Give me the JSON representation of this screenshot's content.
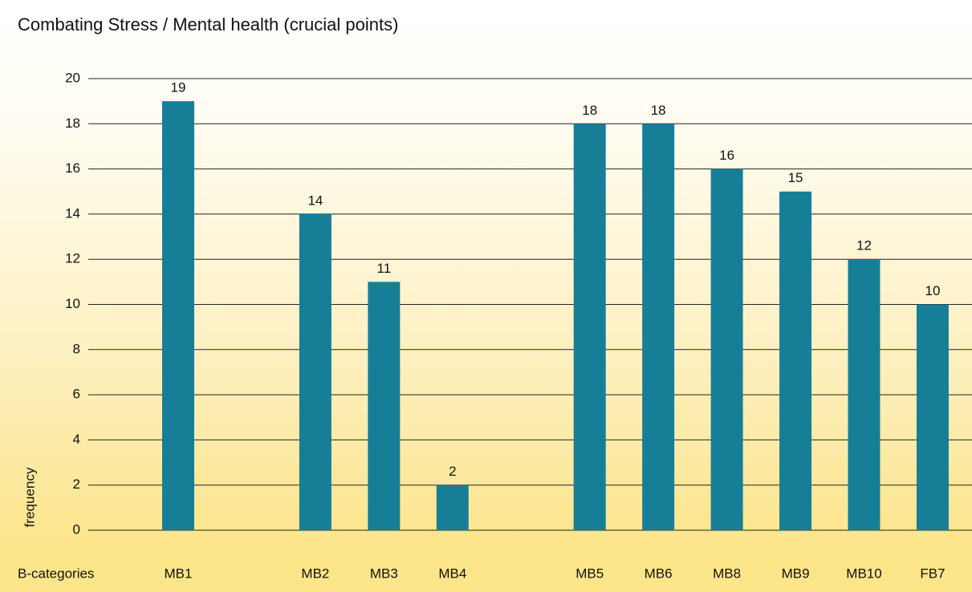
{
  "chart_data": {
    "type": "bar",
    "title": "Combating Stress / Mental health (crucial points)",
    "x_label": "B-categories",
    "y_label": "frequency",
    "categories": [
      "MB1",
      null,
      "MB2",
      "MB3",
      "MB4",
      null,
      "MB5",
      "MB6",
      "MB8",
      "MB9",
      "MB10",
      "FB7"
    ],
    "values": [
      19,
      null,
      14,
      11,
      2,
      null,
      18,
      18,
      16,
      15,
      12,
      10
    ],
    "color": "#177e98",
    "ylim": [
      0,
      20
    ],
    "yticks": [
      0,
      2,
      4,
      6,
      8,
      10,
      12,
      14,
      16,
      18,
      20
    ],
    "grid": true
  }
}
